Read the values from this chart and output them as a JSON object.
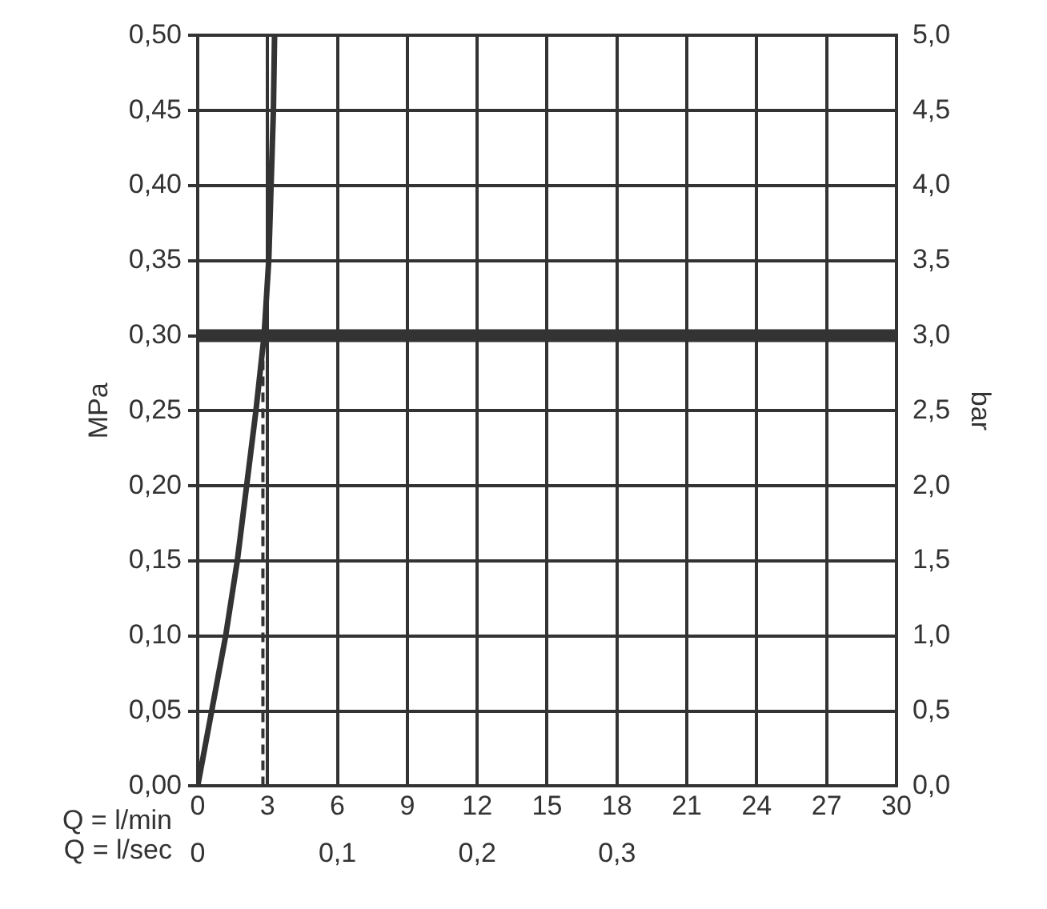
{
  "chart_data": {
    "type": "line",
    "xlabel": "Q = l/min",
    "x2label": "Q = l/sec",
    "ylabel": "MPa",
    "y2label": "bar",
    "xlim": [
      0,
      30
    ],
    "xticks": [
      0,
      3,
      6,
      9,
      12,
      15,
      18,
      21,
      24,
      27,
      30
    ],
    "x2lim": [
      0,
      0.5
    ],
    "x2ticks": [
      0,
      {
        "value": 0.1,
        "label": "0,1"
      },
      {
        "value": 0.2,
        "label": "0,2"
      },
      {
        "value": 0.3,
        "label": "0,3"
      }
    ],
    "ylim": [
      0,
      0.5
    ],
    "yticks": [
      {
        "value": 0,
        "label": "0,00"
      },
      {
        "value": 0.05,
        "label": "0,05"
      },
      {
        "value": 0.1,
        "label": "0,10"
      },
      {
        "value": 0.15,
        "label": "0,15"
      },
      {
        "value": 0.2,
        "label": "0,20"
      },
      {
        "value": 0.25,
        "label": "0,25"
      },
      {
        "value": 0.3,
        "label": "0,30"
      },
      {
        "value": 0.35,
        "label": "0,35"
      },
      {
        "value": 0.4,
        "label": "0,40"
      },
      {
        "value": 0.45,
        "label": "0,45"
      },
      {
        "value": 0.5,
        "label": "0,50"
      }
    ],
    "y2lim": [
      0,
      5
    ],
    "y2ticks": [
      {
        "value": 0,
        "label": "0,0"
      },
      {
        "value": 0.5,
        "label": "0,5"
      },
      {
        "value": 1,
        "label": "1,0"
      },
      {
        "value": 1.5,
        "label": "1,5"
      },
      {
        "value": 2,
        "label": "2,0"
      },
      {
        "value": 2.5,
        "label": "2,5"
      },
      {
        "value": 3,
        "label": "3,0"
      },
      {
        "value": 3.5,
        "label": "3,5"
      },
      {
        "value": 4,
        "label": "4,0"
      },
      {
        "value": 4.5,
        "label": "4,5"
      },
      {
        "value": 5,
        "label": "5,0"
      }
    ],
    "series": [
      {
        "color": "#333333",
        "x": [
          0,
          0.6,
          1.2,
          1.7,
          2.1,
          2.5,
          2.85,
          3.05,
          3.15,
          3.25,
          3.3
        ],
        "values": [
          0,
          0.05,
          0.1,
          0.15,
          0.2,
          0.25,
          0.3,
          0.35,
          0.4,
          0.45,
          0.5
        ]
      },
      {
        "color": "#333333",
        "line_style": "dashed",
        "x": [
          2.8,
          2.8
        ],
        "values": [
          0,
          0.29
        ]
      }
    ],
    "ref_lines": [
      {
        "axis": "y",
        "value": 0.3,
        "color": "#333333"
      }
    ],
    "grid": true
  }
}
